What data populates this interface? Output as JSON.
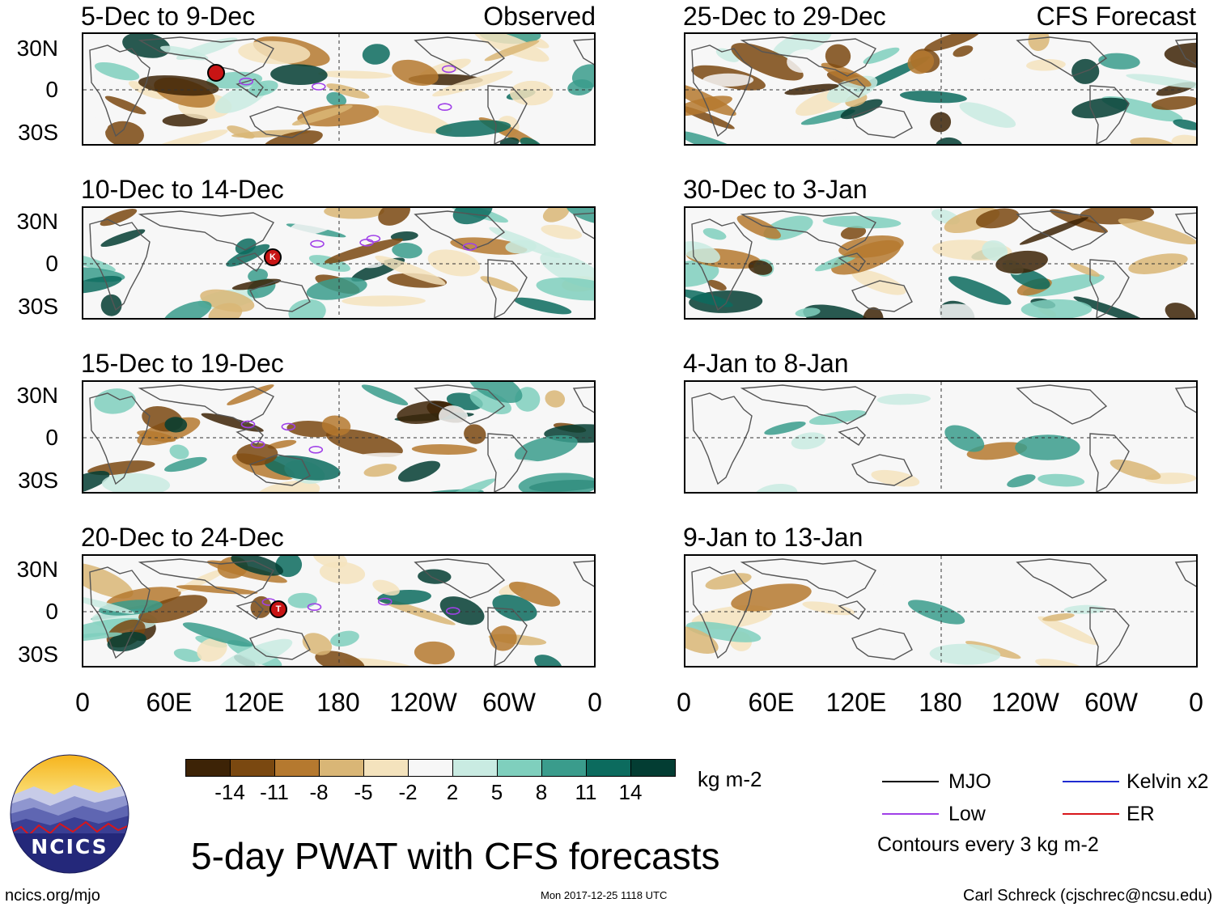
{
  "main_title": "5-day PWAT with CFS forecasts",
  "observed_label": "Observed",
  "forecast_label": "CFS Forecast",
  "panels_left": [
    {
      "title": "5-Dec to 9-Dec"
    },
    {
      "title": "10-Dec to 14-Dec"
    },
    {
      "title": "15-Dec to 19-Dec"
    },
    {
      "title": "20-Dec to 24-Dec"
    }
  ],
  "panels_right": [
    {
      "title": "25-Dec to 29-Dec"
    },
    {
      "title": "30-Dec to 3-Jan"
    },
    {
      "title": "4-Jan to 8-Jan"
    },
    {
      "title": "9-Jan to 13-Jan"
    }
  ],
  "lat_labels": [
    "30N",
    "0",
    "30S"
  ],
  "lon_labels": [
    "0",
    "60E",
    "120E",
    "180",
    "120W",
    "60W",
    "0"
  ],
  "colorbar": {
    "labels": [
      "-14",
      "-11",
      "-8",
      "-5",
      "-2",
      "2",
      "5",
      "8",
      "11",
      "14"
    ],
    "colors": [
      "#3d2306",
      "#7a4810",
      "#b5792f",
      "#d9b676",
      "#f4e3bd",
      "#f7f7f7",
      "#c9ebe2",
      "#7fcfbd",
      "#3a9c8c",
      "#0c6b5e",
      "#033d33"
    ],
    "units": "kg m-2"
  },
  "legend": {
    "items": [
      {
        "label": "MJO",
        "color": "#000000"
      },
      {
        "label": "Kelvin x2",
        "color": "#1f2bd1"
      },
      {
        "label": "Low",
        "color": "#a040e8"
      },
      {
        "label": "ER",
        "color": "#d8161b"
      }
    ],
    "note": "Contours every 3 kg m-2"
  },
  "storm_markers": [
    "K",
    "T"
  ],
  "logo_text": "NCICS",
  "website": "ncics.org/mjo",
  "timestamp": "Mon 2017-12-25 1118 UTC",
  "credit": "Carl Schreck (cjschrec@ncsu.edu)"
}
